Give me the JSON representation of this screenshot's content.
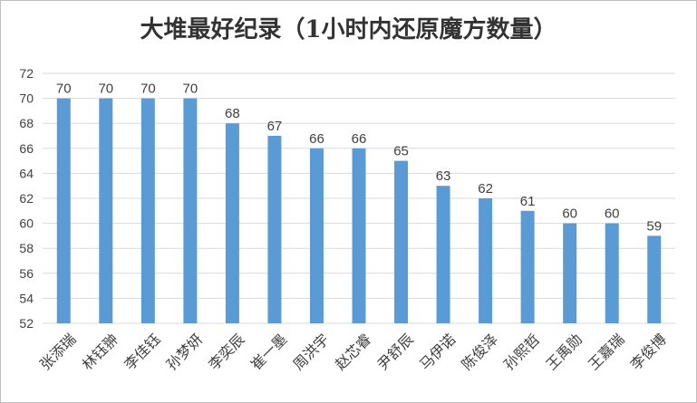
{
  "chart_data": {
    "type": "bar",
    "title": "大堆最好纪录（1小时内还原魔方数量）",
    "xlabel": "",
    "ylabel": "",
    "categories": [
      "张添瑞",
      "林钰翀",
      "李佳钰",
      "孙梦妍",
      "李奕辰",
      "崔一墨",
      "周洪宇",
      "赵芯睿",
      "尹舒辰",
      "马伊诺",
      "陈俊泽",
      "孙熙哲",
      "王禹勋",
      "王嘉瑞",
      "李俊博"
    ],
    "values": [
      70,
      70,
      70,
      70,
      68,
      67,
      66,
      66,
      65,
      63,
      62,
      61,
      60,
      60,
      59
    ],
    "ylim": [
      52,
      72
    ],
    "yticks": [
      52,
      54,
      56,
      58,
      60,
      62,
      64,
      66,
      68,
      70,
      72
    ],
    "grid": true,
    "data_labels": true,
    "bar_color": "#5b9bd5"
  }
}
